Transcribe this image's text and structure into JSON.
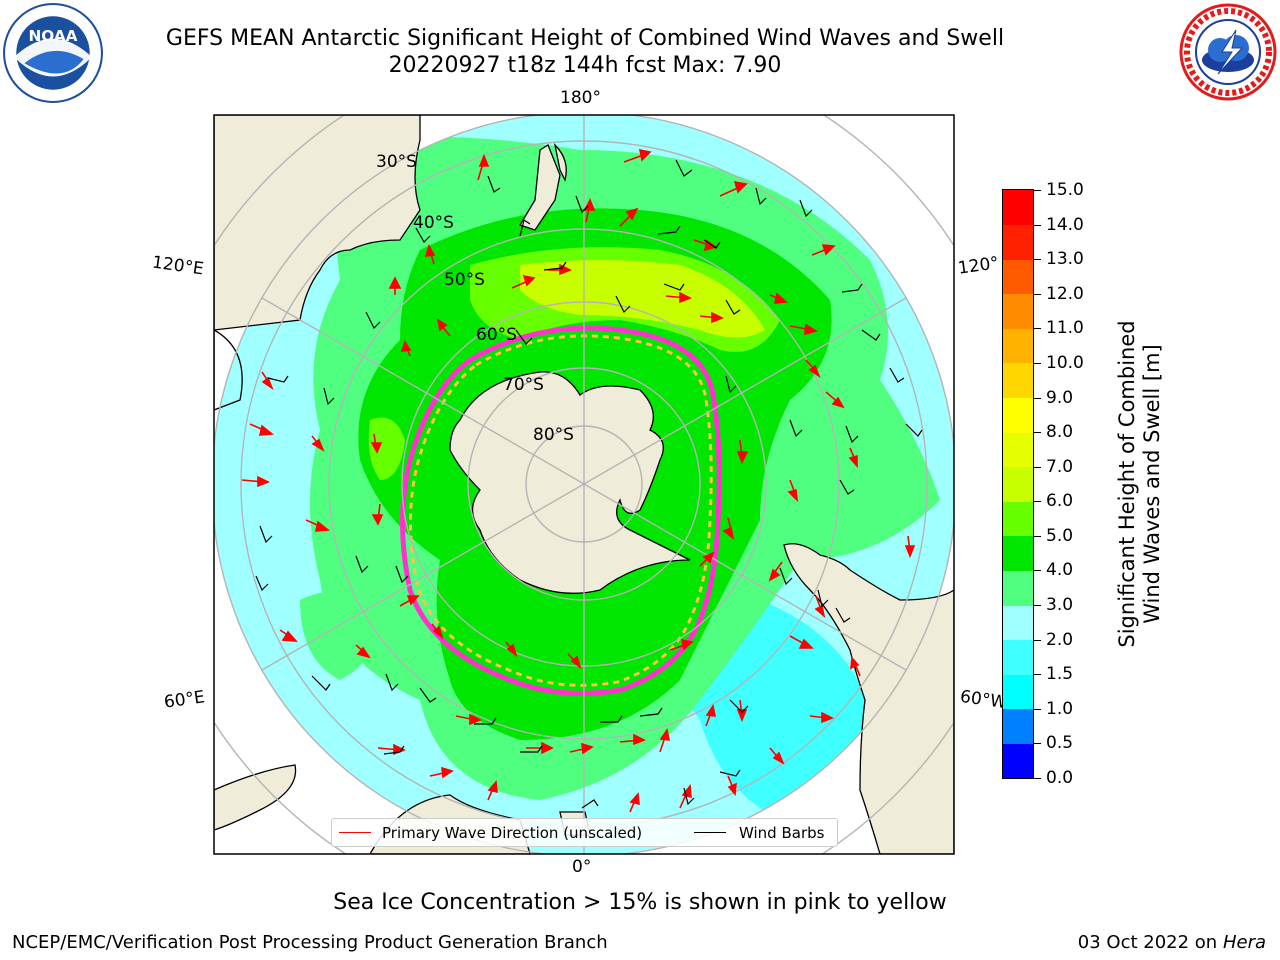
{
  "title_line1": "GEFS MEAN Antarctic Significant Height of Combined Wind Waves and Swell",
  "title_line2": "20220927 t18z 144h fcst   Max: 7.90",
  "logos": {
    "noaa": {
      "text": "NOAA",
      "ring_text": "NATIONAL OCEANIC AND ATMOSPHERIC ADMINISTRATION · U.S. DEPARTMENT OF COMMERCE"
    },
    "nws": {
      "ring_text": "NATIONAL WEATHER SERVICE"
    }
  },
  "map": {
    "projection": "south-polar-stereographic",
    "longitude_labels": {
      "top": "180°",
      "bottom": "0°",
      "upper_left": "120°E",
      "upper_right": "120°",
      "lower_left": "60°E",
      "lower_right": "60°W"
    },
    "latitude_labels": [
      "30°S",
      "40°S",
      "50°S",
      "60°S",
      "70°S",
      "80°S"
    ],
    "land_color": "#efedd9",
    "ocean_color": "#ffffff",
    "graticule_color": "#b4b4b4"
  },
  "legend": {
    "wave_label": "Primary Wave Direction (unscaled)",
    "wave_color": "#ff0000",
    "wind_label": "Wind Barbs",
    "wind_color": "#000000"
  },
  "colorbar": {
    "label": "Significant Height of Combined Wind Waves and Swell [m]",
    "label_line1": "Significant Height of Combined",
    "label_line2": "Wind Waves and Swell [m]",
    "ticks": [
      "0.0",
      "0.5",
      "1.0",
      "1.5",
      "2.0",
      "3.0",
      "4.0",
      "5.0",
      "6.0",
      "7.0",
      "8.0",
      "9.0",
      "10.0",
      "11.0",
      "12.0",
      "13.0",
      "14.0",
      "15.0"
    ],
    "colors": [
      "#0000ff",
      "#0080ff",
      "#00ffff",
      "#40ffff",
      "#a0ffff",
      "#50ff80",
      "#00e600",
      "#66ff00",
      "#c8ff00",
      "#e6ff00",
      "#ffff00",
      "#ffd700",
      "#ffb300",
      "#ff8c00",
      "#ff5a00",
      "#ff2000",
      "#ff0000"
    ]
  },
  "sea_ice_note": "Sea Ice Concentration > 15% is shown in pink to yellow",
  "footer": {
    "left": "NCEP/EMC/Verification Post Processing Product Generation Branch",
    "right_prefix": "03 Oct 2022 on ",
    "right_host": "Hera"
  }
}
